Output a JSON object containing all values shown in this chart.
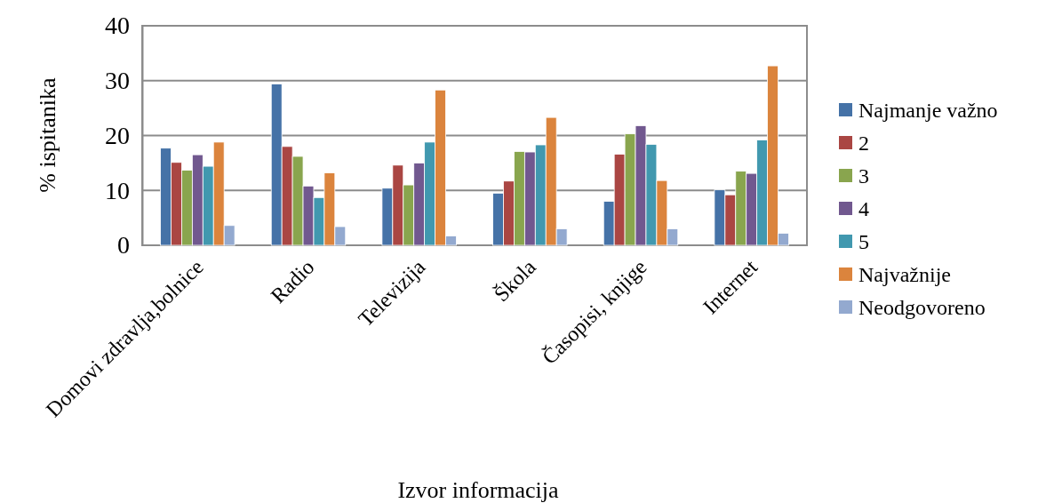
{
  "chart_data": {
    "type": "bar",
    "xlabel": "Izvor informacija",
    "ylabel": "% ispitanika",
    "categories": [
      "Domovi zdravlja,bolnice",
      "Radio",
      "Televizija",
      "Škola",
      "Časopisi, knjige",
      "Internet"
    ],
    "series": [
      {
        "name": "Najmanje važno",
        "color": "#4572a7",
        "values": [
          17.7,
          29.4,
          10.4,
          9.5,
          8.0,
          10.1
        ]
      },
      {
        "name": "2",
        "color": "#aa4643",
        "values": [
          15.1,
          18.0,
          14.6,
          11.7,
          16.6,
          9.2
        ]
      },
      {
        "name": "3",
        "color": "#89a54e",
        "values": [
          13.7,
          16.2,
          11.0,
          17.1,
          20.3,
          13.5
        ]
      },
      {
        "name": "4",
        "color": "#71588f",
        "values": [
          16.5,
          10.8,
          15.0,
          17.0,
          21.8,
          13.1
        ]
      },
      {
        "name": "5",
        "color": "#4198af",
        "values": [
          14.4,
          8.7,
          18.8,
          18.3,
          18.4,
          19.2
        ]
      },
      {
        "name": "Najvažnije",
        "color": "#db843d",
        "values": [
          18.8,
          13.2,
          28.3,
          23.3,
          11.8,
          32.7
        ]
      },
      {
        "name": "Neodgovoreno",
        "color": "#93a9cf",
        "values": [
          3.6,
          3.4,
          1.7,
          3.0,
          3.0,
          2.2
        ]
      }
    ],
    "ylim": [
      0,
      40
    ],
    "yticks": [
      0,
      10,
      20,
      30,
      40
    ],
    "grid": "y",
    "legend": "right"
  }
}
